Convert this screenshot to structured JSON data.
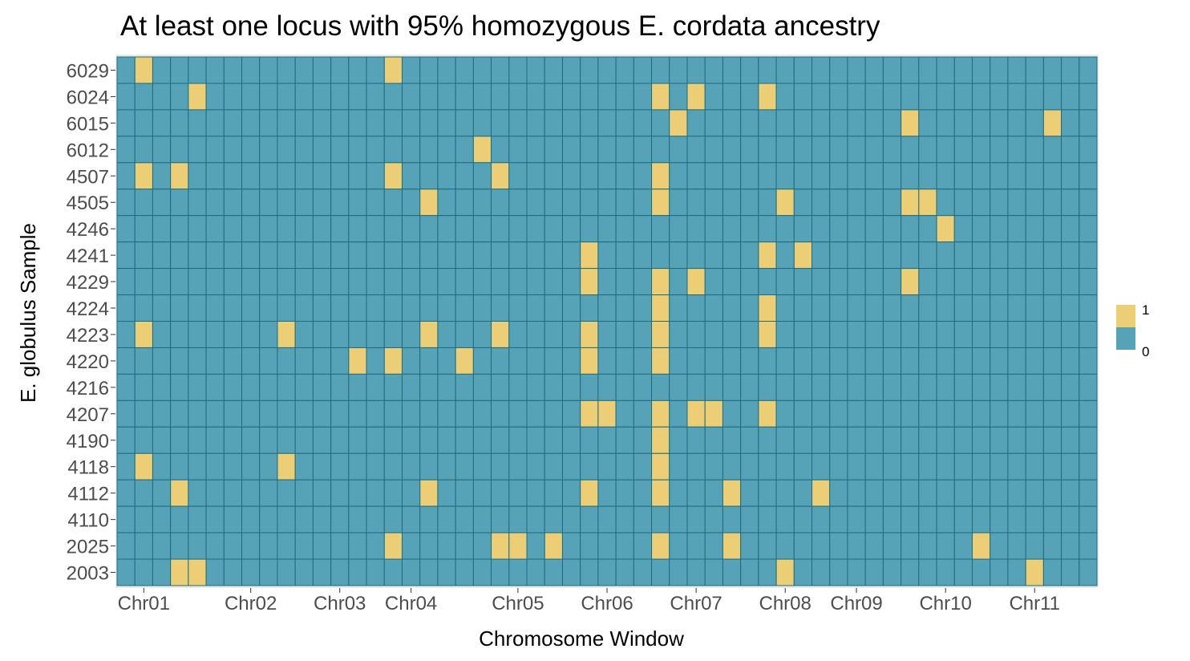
{
  "chart_data": {
    "type": "heatmap",
    "title": "At least one locus with 95% homozygous E. cordata ancestry",
    "xlabel": "Chromosome Window",
    "ylabel": "E. globulus Sample",
    "n_columns": 55,
    "x_tick_labels": [
      {
        "label": "Chr01",
        "col": 1.5
      },
      {
        "label": "Chr02",
        "col": 7.5
      },
      {
        "label": "Chr03",
        "col": 12.5
      },
      {
        "label": "Chr04",
        "col": 16.5
      },
      {
        "label": "Chr05",
        "col": 22.5
      },
      {
        "label": "Chr06",
        "col": 27.5
      },
      {
        "label": "Chr07",
        "col": 32.5
      },
      {
        "label": "Chr08",
        "col": 37.5
      },
      {
        "label": "Chr09",
        "col": 41.5
      },
      {
        "label": "Chr10",
        "col": 46.5
      },
      {
        "label": "Chr11",
        "col": 51.5
      }
    ],
    "samples": [
      "6029",
      "6024",
      "6015",
      "6012",
      "4507",
      "4505",
      "4246",
      "4241",
      "4229",
      "4224",
      "4223",
      "4220",
      "4216",
      "4207",
      "4190",
      "4118",
      "4112",
      "4110",
      "2025",
      "2003"
    ],
    "positive_cells": {
      "6029": [
        1,
        15
      ],
      "6024": [
        4,
        30,
        32,
        36
      ],
      "6015": [
        31,
        44,
        52
      ],
      "6012": [
        20
      ],
      "4507": [
        1,
        3,
        15,
        21,
        30
      ],
      "4505": [
        17,
        30,
        37,
        44,
        45
      ],
      "4246": [
        46
      ],
      "4241": [
        26,
        36,
        38
      ],
      "4229": [
        26,
        30,
        32,
        44
      ],
      "4224": [
        30,
        36
      ],
      "4223": [
        1,
        9,
        17,
        21,
        26,
        30,
        36
      ],
      "4220": [
        13,
        15,
        19,
        26,
        30
      ],
      "4216": [],
      "4207": [
        26,
        27,
        30,
        32,
        33,
        36
      ],
      "4190": [
        30
      ],
      "4118": [
        1,
        9,
        30
      ],
      "4112": [
        3,
        17,
        26,
        30,
        34,
        39
      ],
      "4110": [],
      "2025": [
        15,
        21,
        22,
        24,
        30,
        34,
        48
      ],
      "2003": [
        3,
        4,
        37,
        51
      ]
    },
    "legend": {
      "position": "right",
      "entries": [
        {
          "label": "1",
          "color": "#EBCE75"
        },
        {
          "label": "0",
          "color": "#56A3B8"
        }
      ]
    },
    "colors": {
      "positive": "#EBCE75",
      "negative": "#56A3B8",
      "cell_border": "#1F6C7F",
      "panel_background": "#EBEBEB"
    }
  }
}
